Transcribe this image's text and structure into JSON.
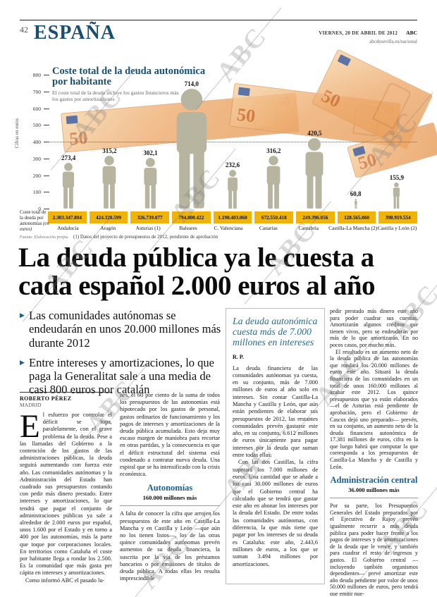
{
  "page": {
    "number": "42",
    "section": "ESPAÑA",
    "date_line": "VIERNES, 20 DE ABRIL DE 2012",
    "brand": "ABC",
    "site": "abcdesevilla.es/nacional",
    "watermark_text": "ABC"
  },
  "chart_data": {
    "type": "bar",
    "title": "Coste total de la deuda autonómica por habitante",
    "subtitle": "El coste total de la deuda incluye los gastos financieros más los gastos por amortizaciones",
    "ylabel": "Cifras en euros",
    "ylim": [
      0,
      800
    ],
    "yticks": [
      0,
      100,
      200,
      300,
      400,
      500,
      600,
      700,
      800
    ],
    "reference_line": 400,
    "grid": "dotted reference line at 400",
    "legend_position": "none",
    "categories": [
      "Andalucía",
      "Aragón",
      "Asturias (1)",
      "Baleares",
      "C. Valenciana",
      "Canarias",
      "Cantabria",
      "Castilla-La Mancha (2)",
      "Castilla y León (2)"
    ],
    "values": [
      273.4,
      315.2,
      302.1,
      714.0,
      232.6,
      316.2,
      420.5,
      60.8,
      155.9
    ],
    "value_labels": [
      "273,4",
      "315,2",
      "302,1",
      "714,0",
      "232,6",
      "316,2",
      "420,5",
      "60,8",
      "155,9"
    ],
    "totals_row_label": "Coste total de la deuda por autonomías",
    "totals_row_unit": "(en euros)",
    "totals": [
      "2.303.347.804",
      "424.320.599",
      "326.739.077",
      "794.800.422",
      "1.190.403.060",
      "672.550.418",
      "249.396.056",
      "128.565.060",
      "398.919.554"
    ],
    "source": "Fuente: Elaboración propia",
    "footnote": "(1) Datos del proyecto de presupuestos de 2012, pendiente de aprobación",
    "banknote_denomination": "50"
  },
  "headline": {
    "lines": [
      "La deuda pública ya le cuesta a",
      "cada español 2.000 euros al año"
    ]
  },
  "bullets": {
    "glyph": "▶",
    "items": [
      "Las comunidades autónomas se endeudarán en unos 20.000 millones más durante 2012",
      "Entre intereses y amortizaciones, lo que paga la Generalitat sale a una media de casi 800 euros por catalán"
    ]
  },
  "article": {
    "byline_name": "ROBERTO PÉREZ",
    "byline_city": "MADRID",
    "dropcap": "E",
    "col1_p1": "l esfuerzo por controlar el déficit se topa, paralelamente, con el grave problema de la deuda. Pese a las llamadas del Gobierno a la contención de los gastos de las administraciones públicas, la deuda seguirá aumentando con fuerza este año. Las comunidades autónomas y la Administración del Estado han cuadrado sus presupuestos contando con pedir más dinero prestado. Entre intereses y amortizaciones, lo que tendrá que pagar el conjunto de administraciones públicas ya sale a alrededor de 2.000 euros por español, unos 1.600 por el Estado y en torno a 400 por las autonomías, más la parte que toque por corporaciones locales. En territorios como Cataluña el coste por habitante llega a rondar los 2.500. Es la comunidad que más gasta per cápita en intereses y amortizaciones.",
    "col1_p2": "Como informó ABC el pasado lu-",
    "col2_p1": "nes, el 60 por ciento de la suma de todos los presupuestos de las autonomías está hipotecado por los gastos de personal, gastos ordinarios de funcionamiento y los pagos de intereses y amortizaciones de la deuda pública acumulada. Esto deja muy escaso margen de maniobra para recortar en otras partidas, y la consecuencia es que el déficit estructural del sistema está condenado a contratar nueva deuda. Una espiral que se ha intensificado con la crisis económica.",
    "col2_subhead": "Autonomías",
    "col2_subhead_sub": "160.000 millones más",
    "col2_p2": "A falta de conocer la cifra que arrojen los presupuestos de este año en Castilla-La Mancha y en Castilla y León —que aún no los tienen listos—, los de las otras quince comunidades autónomas prevén aumentos de su deuda financiera, la suscrita por la vía de los préstamos bancarios o por emisiones de títulos de deuda pública. A todas ellas les resulta imprescindible",
    "col4_p1": "pedir prestado más dinero este año para poder cuadrar sus cuentas. Amortizarán algunos créditos que tienen vivos, pero se endeudarán por más de lo que amortizarán. En no pocos casos, por mucho más.",
    "col4_p2": "El resultado es un aumento neto de la deuda pública de las autonomías que rondará los 20.000 millones de euros este año. Situará la deuda financiera de las comunidades en un total de unos 160.000 millones al acabar este 2012. Los quince presupuestos que ya están elaborados —el de Asturias está pendiente de aprobación, pero el Gobierno de Cascos dejó uno preparado— prevén, en su conjunto, un aumento neto de la deuda financiera autonómica de 17.381 millones de euros, cifra en la que luego habrá que computar la que corresponda a los presupuestos de Castilla-La Mancha y de Castilla y León.",
    "col4_subhead": "Administración central",
    "col4_subhead_sub": "36.000 millones más",
    "col4_p3": "Por su parte, los Presupuestos Generales del Estado preparados por el Ejecutivo de Rajoy prevén igualmente recurrir a más deuda pública para poder hacer frente a los pagos de intereses y de amortizaciones de la deuda que le vence, y también para cuadrar el resto de ingresos y gastos. El Gobierno central —incluyendo también organismos dependientes— prevé amortizar este año deuda pendiente por valor de unos 50.000 millones de euros, pero tendrá que emitir nue-"
  },
  "sidebar": {
    "title": "La deuda autonómica cuesta más de 7.000 millones en intereses",
    "byline": "R. P.",
    "p1": "La deuda financiera de las comunidades autónomas ya cuesta, en su conjunto, más de 7.000 millones de euros al año solo en intereses. Sin contar Castilla-La Mancha y Castilla y León, que aún están pendientes de elaborar sus presupuestos de 2012, las restantes comunidades prevén gastarse este año, en su conjunto, 6.612 millones de euros únicamente para pagar intereses por la deuda que suman entre todas ellas.",
    "p2": "Con las dos Castillas, la cifra superará los 7.000 millones de euros. Una cantidad que se añade a los casi 30.000 millones de euros que el Gobierno central ha calculado que se tendrá que gastar este año en abonar los intereses por la deuda del Estado. De entre todas las comunidades autónomas, con diferencia, la que más tiene que pagar por los intereses de su deuda es Cataluña: este año, 2.443,6 millones de euros, a los que se suman 3.494 millones por amortizaciones."
  },
  "colors": {
    "navy": "#1b4d6e",
    "subhead_blue": "#1d5f8a",
    "sidebar_title_blue": "#2a6a8a",
    "totals_yellow": "#f0b30a",
    "figure_gray": "#b7b4a0",
    "note_orange": "#eeab6d"
  }
}
